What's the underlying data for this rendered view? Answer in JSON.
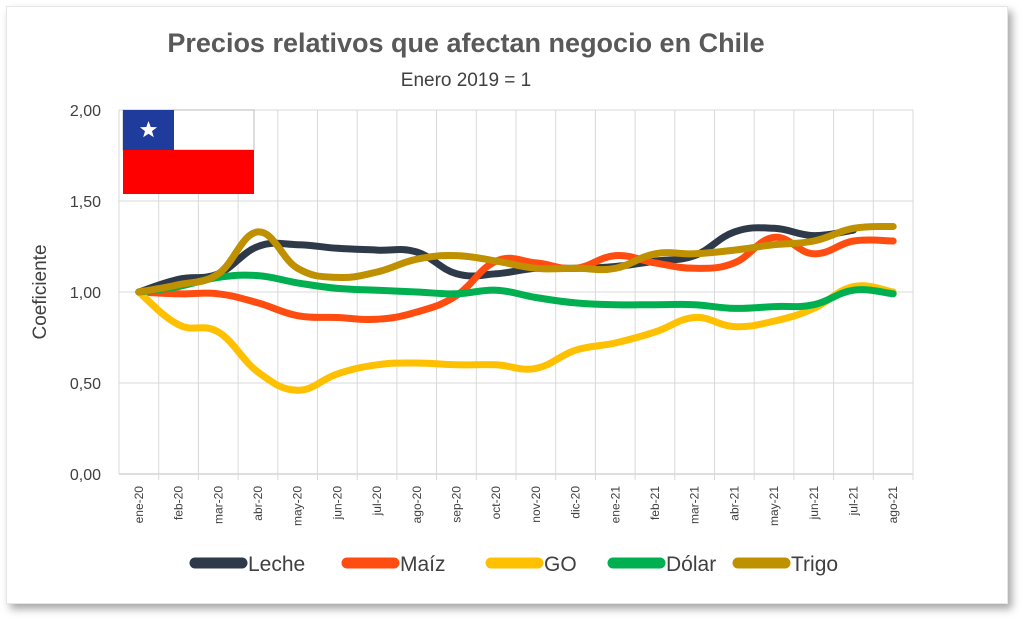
{
  "chart_data": {
    "type": "line",
    "title": "Precios relativos que afectan negocio en Chile",
    "subtitle": "Enero 2019 = 1",
    "xlabel": "",
    "ylabel": "Coeficiente",
    "ylim": [
      0,
      2
    ],
    "yticks": [
      "0,00",
      "0,50",
      "1,00",
      "1,50",
      "2,00"
    ],
    "yticks_values": [
      0,
      0.5,
      1,
      1.5,
      2
    ],
    "grid": "horizontal and vertical",
    "legend": "bottom",
    "categories": [
      "ene-20",
      "feb-20",
      "mar-20",
      "abr-20",
      "may-20",
      "jun-20",
      "jul-20",
      "ago-20",
      "sep-20",
      "oct-20",
      "nov-20",
      "dic-20",
      "ene-21",
      "feb-21",
      "mar-21",
      "abr-21",
      "may-21",
      "jun-21",
      "jul-21",
      "ago-21"
    ],
    "series": [
      {
        "name": "Leche",
        "color": "#2e3a4a",
        "values": [
          1.0,
          1.07,
          1.1,
          1.25,
          1.26,
          1.24,
          1.23,
          1.22,
          1.1,
          1.1,
          1.13,
          1.13,
          1.14,
          1.17,
          1.2,
          1.33,
          1.35,
          1.31,
          1.34,
          null
        ]
      },
      {
        "name": "Maíz",
        "color": "#ff4d12",
        "values": [
          1.0,
          0.99,
          0.99,
          0.94,
          0.87,
          0.86,
          0.85,
          0.89,
          0.98,
          1.17,
          1.16,
          1.13,
          1.2,
          1.16,
          1.13,
          1.16,
          1.3,
          1.21,
          1.28,
          1.28
        ]
      },
      {
        "name": "GO",
        "color": "#ffc000",
        "values": [
          1.0,
          0.82,
          0.78,
          0.56,
          0.46,
          0.55,
          0.6,
          0.61,
          0.6,
          0.6,
          0.58,
          0.68,
          0.72,
          0.78,
          0.86,
          0.81,
          0.84,
          0.91,
          1.03,
          1.0
        ]
      },
      {
        "name": "Dólar",
        "color": "#00b050",
        "values": [
          1.0,
          1.03,
          1.08,
          1.09,
          1.05,
          1.02,
          1.01,
          1.0,
          0.99,
          1.01,
          0.97,
          0.94,
          0.93,
          0.93,
          0.93,
          0.91,
          0.92,
          0.93,
          1.01,
          0.99
        ]
      },
      {
        "name": "Trigo",
        "color": "#bf9000",
        "values": [
          1.0,
          1.04,
          1.1,
          1.33,
          1.13,
          1.08,
          1.11,
          1.18,
          1.2,
          1.17,
          1.13,
          1.13,
          1.13,
          1.21,
          1.21,
          1.23,
          1.26,
          1.28,
          1.35,
          1.36
        ]
      }
    ]
  },
  "flag": {
    "red": "#ff0000",
    "blue": "#1f3b9c",
    "white": "#ffffff"
  }
}
